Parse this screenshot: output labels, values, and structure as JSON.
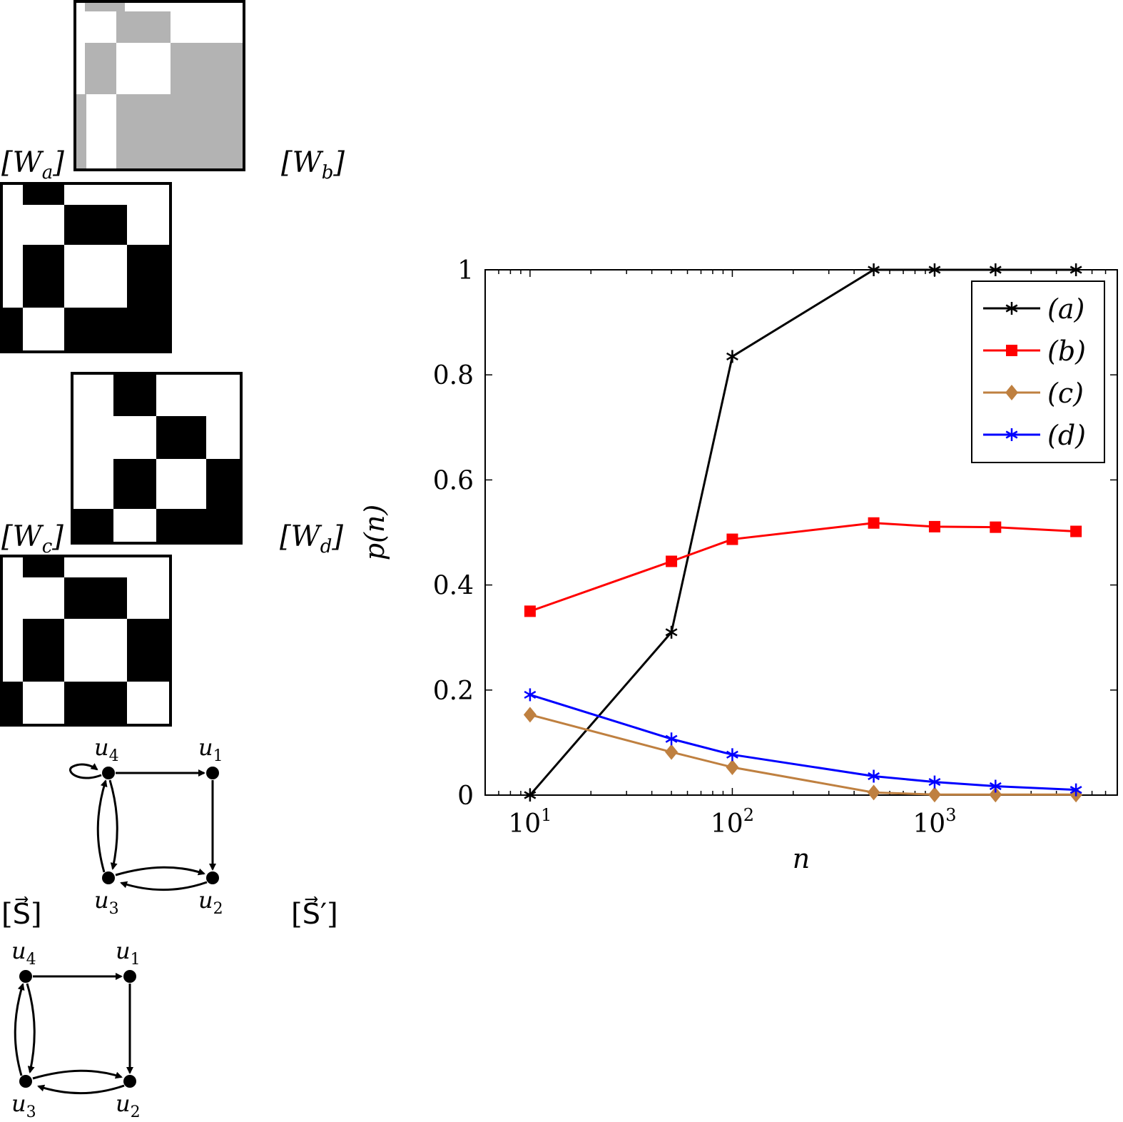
{
  "panels": {
    "Wa": {
      "label": "[Wa]",
      "label_display": "[W",
      "sub": "a"
    },
    "Wb": {
      "label": "[Wb]",
      "label_display": "[W",
      "sub": "b"
    },
    "Wc": {
      "label": "[Wc]",
      "label_display": "[W",
      "sub": "c"
    },
    "Wd": {
      "label": "[Wd]",
      "label_display": "[W",
      "sub": "d"
    },
    "S": {
      "label": "[S⃗]"
    },
    "Sp": {
      "label": "[S⃗′]"
    }
  },
  "colors": {
    "graphon_gray": "#b3b3b3",
    "graphon_black": "#000000",
    "series_a": "#000000",
    "series_b": "#ff0000",
    "series_c": "#bf8040",
    "series_d": "#0000ff"
  },
  "graphs": {
    "nodes": [
      "u1",
      "u2",
      "u3",
      "u4"
    ],
    "node_labels": {
      "u1": "u",
      "u2": "u",
      "u3": "u",
      "u4": "u"
    },
    "node_subs": {
      "u1": "1",
      "u2": "2",
      "u3": "3",
      "u4": "4"
    }
  },
  "chart_data": {
    "type": "line",
    "xlabel": "n",
    "ylabel": "p(n)",
    "x_scale": "log",
    "xlim": [
      6,
      8000
    ],
    "ylim": [
      0,
      1
    ],
    "x_ticks": [
      "10^1",
      "10^2",
      "10^3"
    ],
    "y_ticks": [
      "0",
      "0.2",
      "0.4",
      "0.6",
      "0.8",
      "1"
    ],
    "legend_position": "top-right",
    "x": [
      10,
      50,
      100,
      500,
      1000,
      2000,
      5000
    ],
    "series": [
      {
        "name": "(a)",
        "marker": "star",
        "values": [
          0,
          0.31,
          0.835,
          1,
          1,
          1,
          1
        ]
      },
      {
        "name": "(b)",
        "marker": "square",
        "values": [
          0.35,
          0.445,
          0.487,
          0.518,
          0.511,
          0.51,
          0.502
        ]
      },
      {
        "name": "(c)",
        "marker": "diamond",
        "values": [
          0.153,
          0.082,
          0.053,
          0.005,
          0.001,
          0.001,
          0.001
        ]
      },
      {
        "name": "(d)",
        "marker": "asterisk",
        "values": [
          0.191,
          0.107,
          0.077,
          0.036,
          0.025,
          0.017,
          0.01
        ]
      }
    ]
  }
}
